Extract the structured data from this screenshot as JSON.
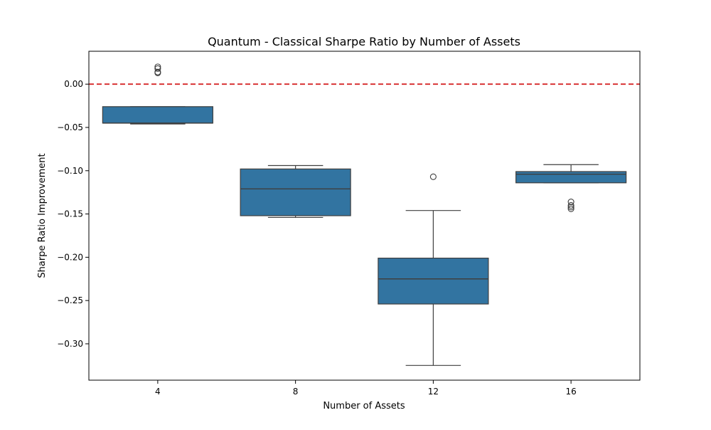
{
  "chart_data": {
    "type": "box",
    "title": "Quantum - Classical Sharpe Ratio by Number of Assets",
    "xlabel": "Number of Assets",
    "ylabel": "Sharpe Ratio Improvement",
    "categories": [
      "4",
      "8",
      "12",
      "16"
    ],
    "ylim": [
      -0.342,
      0.038
    ],
    "yticks": [
      0.0,
      -0.05,
      -0.1,
      -0.15,
      -0.2,
      -0.25,
      -0.3
    ],
    "ytick_labels": [
      "0.00",
      "−0.05",
      "−0.10",
      "−0.15",
      "−0.20",
      "−0.25",
      "−0.30"
    ],
    "grid": false,
    "reference_line": {
      "y": 0.0,
      "color": "#d62728",
      "style": "dashed"
    },
    "box_color": "#3274a1",
    "edge_color": "#3f3f3f",
    "boxes": [
      {
        "category": "4",
        "whisker_low": -0.046,
        "q1": -0.045,
        "median": -0.045,
        "q3": -0.026,
        "whisker_high": -0.026,
        "outliers": [
          0.013,
          0.014,
          0.018,
          0.02
        ]
      },
      {
        "category": "8",
        "whisker_low": -0.154,
        "q1": -0.152,
        "median": -0.121,
        "q3": -0.098,
        "whisker_high": -0.094,
        "outliers": []
      },
      {
        "category": "12",
        "whisker_low": -0.325,
        "q1": -0.254,
        "median": -0.225,
        "q3": -0.201,
        "whisker_high": -0.146,
        "outliers": [
          -0.107
        ]
      },
      {
        "category": "16",
        "whisker_low": -0.114,
        "q1": -0.114,
        "median": -0.104,
        "q3": -0.101,
        "whisker_high": -0.093,
        "outliers": [
          -0.136,
          -0.14,
          -0.142,
          -0.144
        ]
      }
    ]
  }
}
